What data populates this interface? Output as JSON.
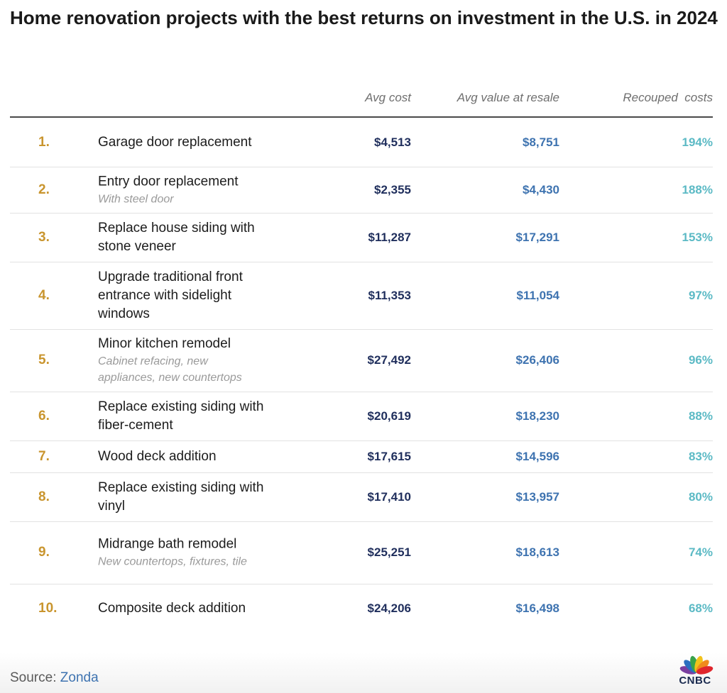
{
  "title": "Home renovation projects with the best returns on investment in the U.S. in 2024",
  "columns": {
    "avg_cost": "Avg cost",
    "avg_value": "Avg value at resale",
    "recouped": "Recouped  costs"
  },
  "rows": [
    {
      "rank": "1.",
      "name": "Garage door replacement",
      "sub": "",
      "avg_cost": "$4,513",
      "avg_value": "$8,751",
      "recouped": "194%"
    },
    {
      "rank": "2.",
      "name": "Entry door replacement",
      "sub": "With steel door",
      "avg_cost": "$2,355",
      "avg_value": "$4,430",
      "recouped": "188%"
    },
    {
      "rank": "3.",
      "name": "Replace house siding with stone veneer",
      "sub": "",
      "avg_cost": "$11,287",
      "avg_value": "$17,291",
      "recouped": "153%"
    },
    {
      "rank": "4.",
      "name": "Upgrade traditional front entrance with sidelight windows",
      "sub": "",
      "avg_cost": "$11,353",
      "avg_value": "$11,054",
      "recouped": "97%"
    },
    {
      "rank": "5.",
      "name": "Minor kitchen remodel",
      "sub": "Cabinet refacing, new appliances, new countertops",
      "avg_cost": "$27,492",
      "avg_value": "$26,406",
      "recouped": "96%"
    },
    {
      "rank": "6.",
      "name": "Replace existing siding with fiber-cement",
      "sub": "",
      "avg_cost": "$20,619",
      "avg_value": "$18,230",
      "recouped": "88%"
    },
    {
      "rank": "7.",
      "name": "Wood deck addition",
      "sub": "",
      "avg_cost": "$17,615",
      "avg_value": "$14,596",
      "recouped": "83%"
    },
    {
      "rank": "8.",
      "name": "Replace existing siding with vinyl",
      "sub": "",
      "avg_cost": "$17,410",
      "avg_value": "$13,957",
      "recouped": "80%"
    },
    {
      "rank": "9.",
      "name": "Midrange bath remodel",
      "sub": "New countertops, fixtures, tile",
      "avg_cost": "$25,251",
      "avg_value": "$18,613",
      "recouped": "74%"
    },
    {
      "rank": "10.",
      "name": "Composite deck addition",
      "sub": "",
      "avg_cost": "$24,206",
      "avg_value": "$16,498",
      "recouped": "68%"
    }
  ],
  "source": {
    "label": "Source:",
    "name": "Zonda"
  },
  "logo_text": "CNBC",
  "colors": {
    "rank": "#c9952e",
    "avg_cost": "#1f2e5c",
    "avg_value": "#3e73b0",
    "recouped": "#5cbac5"
  },
  "chart_data": {
    "type": "table",
    "title": "Home renovation projects with the best returns on investment in the U.S. in 2024",
    "columns": [
      "Avg cost",
      "Avg value at resale",
      "Recouped  costs"
    ],
    "categories": [
      "Garage door replacement",
      "Entry door replacement",
      "Replace house siding with stone veneer",
      "Upgrade traditional front entrance with sidelight windows",
      "Minor kitchen remodel",
      "Replace existing siding with fiber-cement",
      "Wood deck addition",
      "Replace existing siding with vinyl",
      "Midrange bath remodel",
      "Composite deck addition"
    ],
    "series": [
      {
        "name": "Avg cost",
        "values": [
          4513,
          2355,
          11287,
          11353,
          27492,
          20619,
          17615,
          17410,
          25251,
          24206
        ]
      },
      {
        "name": "Avg value at resale",
        "values": [
          8751,
          4430,
          17291,
          11054,
          26406,
          18230,
          14596,
          13957,
          18613,
          16498
        ]
      },
      {
        "name": "Recouped  costs",
        "values": [
          194,
          188,
          153,
          97,
          96,
          88,
          83,
          80,
          74,
          68
        ]
      }
    ]
  }
}
